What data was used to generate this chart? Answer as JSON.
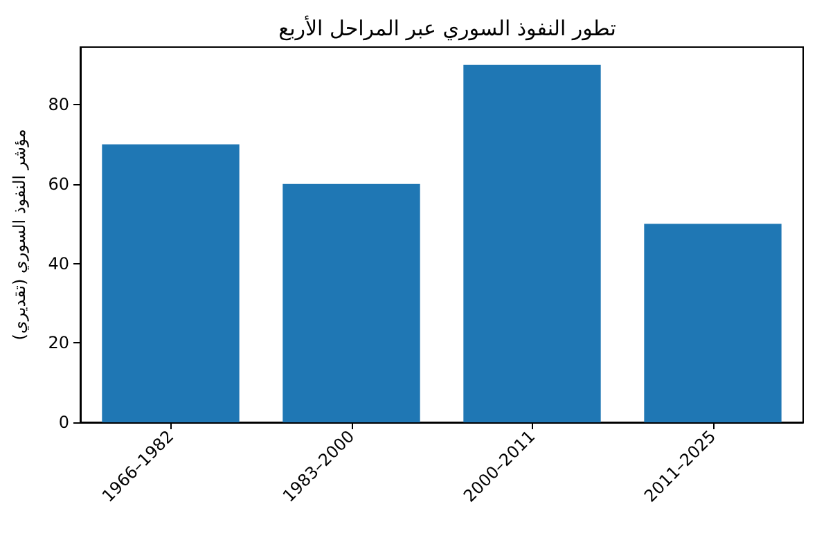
{
  "chart_data": {
    "type": "bar",
    "title": "تطور النفوذ السوري عبر المراحل الأربع",
    "ylabel": "مؤشر النفوذ السوري (تقديري)",
    "categories": [
      "1966–1982",
      "1983–2000",
      "2000–2011",
      "2011–2025"
    ],
    "values": [
      70,
      60,
      90,
      50
    ],
    "color": "#1f77b4",
    "ylim": [
      0,
      94.5
    ],
    "yticks": [
      0,
      20,
      40,
      60,
      80
    ],
    "grid": false
  }
}
